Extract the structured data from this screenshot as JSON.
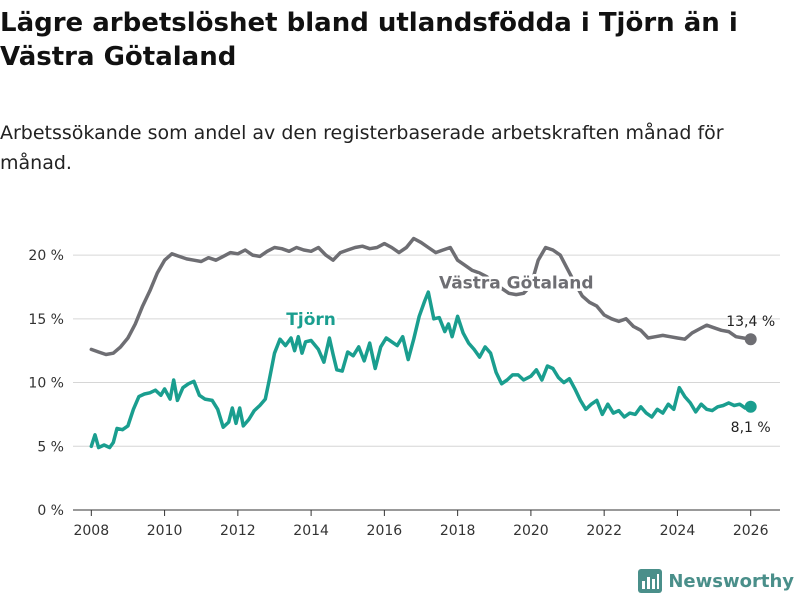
{
  "title": "Lägre arbetslöshet bland utlandsfödda i Tjörn än i Västra Götaland",
  "subtitle": "Arbetssökande som andel av den registerbaserade arbetskraften månad för månad.",
  "brand": "Newsworthy",
  "chart_data": {
    "type": "line",
    "title": "Lägre arbetslöshet bland utlandsfödda i Tjörn än i Västra Götaland",
    "xlabel": "",
    "ylabel": "",
    "xlim": [
      2007.5,
      2026.8
    ],
    "ylim": [
      0,
      21.5
    ],
    "grid": true,
    "x_ticks": [
      2008,
      2010,
      2012,
      2014,
      2016,
      2018,
      2020,
      2022,
      2024,
      2026
    ],
    "y_ticks": [
      0,
      5,
      10,
      15,
      20
    ],
    "y_tick_labels": [
      "0 %",
      "5 %",
      "10 %",
      "15 %",
      "20 %"
    ],
    "series": [
      {
        "name": "Västra Götaland",
        "color": "#6e6e73",
        "end_label": "13,4 %",
        "points": [
          [
            2008.0,
            12.6
          ],
          [
            2008.2,
            12.4
          ],
          [
            2008.4,
            12.2
          ],
          [
            2008.6,
            12.3
          ],
          [
            2008.8,
            12.8
          ],
          [
            2009.0,
            13.5
          ],
          [
            2009.2,
            14.6
          ],
          [
            2009.4,
            16.0
          ],
          [
            2009.6,
            17.2
          ],
          [
            2009.8,
            18.6
          ],
          [
            2010.0,
            19.6
          ],
          [
            2010.2,
            20.1
          ],
          [
            2010.4,
            19.9
          ],
          [
            2010.6,
            19.7
          ],
          [
            2010.8,
            19.6
          ],
          [
            2011.0,
            19.5
          ],
          [
            2011.2,
            19.8
          ],
          [
            2011.4,
            19.6
          ],
          [
            2011.6,
            19.9
          ],
          [
            2011.8,
            20.2
          ],
          [
            2012.0,
            20.1
          ],
          [
            2012.2,
            20.4
          ],
          [
            2012.4,
            20.0
          ],
          [
            2012.6,
            19.9
          ],
          [
            2012.8,
            20.3
          ],
          [
            2013.0,
            20.6
          ],
          [
            2013.2,
            20.5
          ],
          [
            2013.4,
            20.3
          ],
          [
            2013.6,
            20.6
          ],
          [
            2013.8,
            20.4
          ],
          [
            2014.0,
            20.3
          ],
          [
            2014.2,
            20.6
          ],
          [
            2014.4,
            20.0
          ],
          [
            2014.6,
            19.6
          ],
          [
            2014.8,
            20.2
          ],
          [
            2015.0,
            20.4
          ],
          [
            2015.2,
            20.6
          ],
          [
            2015.4,
            20.7
          ],
          [
            2015.6,
            20.5
          ],
          [
            2015.8,
            20.6
          ],
          [
            2016.0,
            20.9
          ],
          [
            2016.2,
            20.6
          ],
          [
            2016.4,
            20.2
          ],
          [
            2016.6,
            20.6
          ],
          [
            2016.8,
            21.3
          ],
          [
            2017.0,
            21.0
          ],
          [
            2017.2,
            20.6
          ],
          [
            2017.4,
            20.2
          ],
          [
            2017.6,
            20.4
          ],
          [
            2017.8,
            20.6
          ],
          [
            2018.0,
            19.6
          ],
          [
            2018.2,
            19.2
          ],
          [
            2018.4,
            18.8
          ],
          [
            2018.6,
            18.6
          ],
          [
            2018.8,
            18.3
          ],
          [
            2019.0,
            17.8
          ],
          [
            2019.2,
            17.4
          ],
          [
            2019.4,
            17.0
          ],
          [
            2019.6,
            16.9
          ],
          [
            2019.8,
            17.0
          ],
          [
            2020.0,
            17.6
          ],
          [
            2020.2,
            19.6
          ],
          [
            2020.4,
            20.6
          ],
          [
            2020.6,
            20.4
          ],
          [
            2020.8,
            20.0
          ],
          [
            2021.0,
            18.9
          ],
          [
            2021.2,
            17.8
          ],
          [
            2021.4,
            16.8
          ],
          [
            2021.6,
            16.3
          ],
          [
            2021.8,
            16.0
          ],
          [
            2022.0,
            15.3
          ],
          [
            2022.2,
            15.0
          ],
          [
            2022.4,
            14.8
          ],
          [
            2022.6,
            15.0
          ],
          [
            2022.8,
            14.4
          ],
          [
            2023.0,
            14.1
          ],
          [
            2023.2,
            13.5
          ],
          [
            2023.4,
            13.6
          ],
          [
            2023.6,
            13.7
          ],
          [
            2023.8,
            13.6
          ],
          [
            2024.0,
            13.5
          ],
          [
            2024.2,
            13.4
          ],
          [
            2024.4,
            13.9
          ],
          [
            2024.6,
            14.2
          ],
          [
            2024.8,
            14.5
          ],
          [
            2025.0,
            14.3
          ],
          [
            2025.2,
            14.1
          ],
          [
            2025.4,
            14.0
          ],
          [
            2025.6,
            13.6
          ],
          [
            2025.8,
            13.5
          ],
          [
            2026.0,
            13.4
          ]
        ]
      },
      {
        "name": "Tjörn",
        "color": "#1a9e8f",
        "end_label": "8,1 %",
        "points": [
          [
            2008.0,
            5.0
          ],
          [
            2008.1,
            5.9
          ],
          [
            2008.2,
            4.9
          ],
          [
            2008.35,
            5.1
          ],
          [
            2008.5,
            4.9
          ],
          [
            2008.6,
            5.3
          ],
          [
            2008.7,
            6.4
          ],
          [
            2008.85,
            6.3
          ],
          [
            2009.0,
            6.6
          ],
          [
            2009.15,
            7.9
          ],
          [
            2009.3,
            8.9
          ],
          [
            2009.45,
            9.1
          ],
          [
            2009.6,
            9.2
          ],
          [
            2009.75,
            9.4
          ],
          [
            2009.9,
            9.0
          ],
          [
            2010.0,
            9.5
          ],
          [
            2010.15,
            8.7
          ],
          [
            2010.25,
            10.2
          ],
          [
            2010.35,
            8.6
          ],
          [
            2010.5,
            9.6
          ],
          [
            2010.65,
            9.9
          ],
          [
            2010.8,
            10.1
          ],
          [
            2010.95,
            9.0
          ],
          [
            2011.1,
            8.7
          ],
          [
            2011.3,
            8.6
          ],
          [
            2011.45,
            7.9
          ],
          [
            2011.6,
            6.5
          ],
          [
            2011.75,
            6.9
          ],
          [
            2011.85,
            8.0
          ],
          [
            2011.95,
            6.8
          ],
          [
            2012.05,
            8.0
          ],
          [
            2012.15,
            6.6
          ],
          [
            2012.3,
            7.1
          ],
          [
            2012.45,
            7.8
          ],
          [
            2012.6,
            8.2
          ],
          [
            2012.75,
            8.7
          ],
          [
            2012.85,
            10.1
          ],
          [
            2013.0,
            12.3
          ],
          [
            2013.15,
            13.4
          ],
          [
            2013.3,
            12.9
          ],
          [
            2013.45,
            13.5
          ],
          [
            2013.55,
            12.5
          ],
          [
            2013.65,
            13.6
          ],
          [
            2013.75,
            12.3
          ],
          [
            2013.85,
            13.2
          ],
          [
            2014.0,
            13.3
          ],
          [
            2014.2,
            12.6
          ],
          [
            2014.35,
            11.6
          ],
          [
            2014.5,
            13.5
          ],
          [
            2014.6,
            12.2
          ],
          [
            2014.7,
            11.0
          ],
          [
            2014.85,
            10.9
          ],
          [
            2015.0,
            12.4
          ],
          [
            2015.15,
            12.1
          ],
          [
            2015.3,
            12.8
          ],
          [
            2015.45,
            11.7
          ],
          [
            2015.6,
            13.1
          ],
          [
            2015.75,
            11.1
          ],
          [
            2015.9,
            12.8
          ],
          [
            2016.05,
            13.5
          ],
          [
            2016.2,
            13.2
          ],
          [
            2016.35,
            12.9
          ],
          [
            2016.5,
            13.6
          ],
          [
            2016.65,
            11.8
          ],
          [
            2016.8,
            13.4
          ],
          [
            2016.95,
            15.2
          ],
          [
            2017.1,
            16.4
          ],
          [
            2017.2,
            17.1
          ],
          [
            2017.35,
            15.0
          ],
          [
            2017.5,
            15.1
          ],
          [
            2017.65,
            14.0
          ],
          [
            2017.75,
            14.6
          ],
          [
            2017.85,
            13.6
          ],
          [
            2018.0,
            15.2
          ],
          [
            2018.15,
            13.9
          ],
          [
            2018.3,
            13.1
          ],
          [
            2018.45,
            12.6
          ],
          [
            2018.6,
            12.0
          ],
          [
            2018.75,
            12.8
          ],
          [
            2018.9,
            12.3
          ],
          [
            2019.05,
            10.8
          ],
          [
            2019.2,
            9.9
          ],
          [
            2019.35,
            10.2
          ],
          [
            2019.5,
            10.6
          ],
          [
            2019.65,
            10.6
          ],
          [
            2019.8,
            10.2
          ],
          [
            2020.0,
            10.5
          ],
          [
            2020.15,
            11.0
          ],
          [
            2020.3,
            10.2
          ],
          [
            2020.45,
            11.3
          ],
          [
            2020.6,
            11.1
          ],
          [
            2020.75,
            10.4
          ],
          [
            2020.9,
            10.0
          ],
          [
            2021.05,
            10.3
          ],
          [
            2021.2,
            9.5
          ],
          [
            2021.35,
            8.6
          ],
          [
            2021.5,
            7.9
          ],
          [
            2021.65,
            8.3
          ],
          [
            2021.8,
            8.6
          ],
          [
            2021.95,
            7.5
          ],
          [
            2022.1,
            8.3
          ],
          [
            2022.25,
            7.6
          ],
          [
            2022.4,
            7.8
          ],
          [
            2022.55,
            7.3
          ],
          [
            2022.7,
            7.6
          ],
          [
            2022.85,
            7.5
          ],
          [
            2023.0,
            8.1
          ],
          [
            2023.15,
            7.6
          ],
          [
            2023.3,
            7.3
          ],
          [
            2023.45,
            7.9
          ],
          [
            2023.6,
            7.6
          ],
          [
            2023.75,
            8.3
          ],
          [
            2023.9,
            7.9
          ],
          [
            2024.05,
            9.6
          ],
          [
            2024.2,
            8.9
          ],
          [
            2024.35,
            8.4
          ],
          [
            2024.5,
            7.7
          ],
          [
            2024.65,
            8.3
          ],
          [
            2024.8,
            7.9
          ],
          [
            2024.95,
            7.8
          ],
          [
            2025.1,
            8.1
          ],
          [
            2025.25,
            8.2
          ],
          [
            2025.4,
            8.4
          ],
          [
            2025.55,
            8.2
          ],
          [
            2025.7,
            8.3
          ],
          [
            2025.85,
            8.0
          ],
          [
            2026.0,
            8.1
          ]
        ]
      }
    ]
  }
}
